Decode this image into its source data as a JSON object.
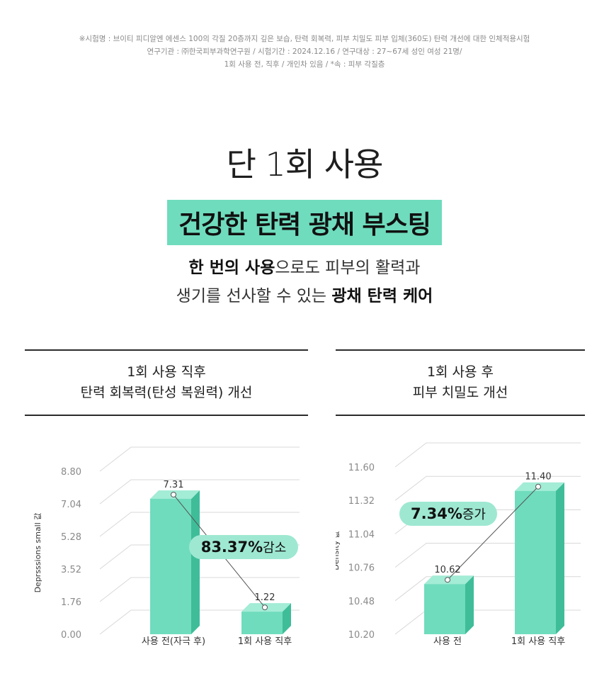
{
  "footnote": {
    "lines": [
      "※시험명 : 브이티 피디알엔 에센스 100의 각질 20층까지 깊은 보습, 탄력 회복력, 피부 치밀도 피부 입체(360도) 탄력 개선에 대한 인체적용시험",
      "연구기관 : ㈜한국피부과학연구원 / 시험기간 : 2024.12.16 / 연구대상 : 27~67세 성인 여성 21명/",
      "1회 사용 전, 직후 / 개인차 있음 / *속 : 피부 각질층"
    ]
  },
  "header": {
    "title": "단 1회 사용",
    "highlight": "건강한 탄력 광채 부스팅",
    "desc_line1_bold": "한 번의 사용",
    "desc_line1_rest": "으로도 피부의 활력과",
    "desc_line2_rest": "생기를 선사할 수 있는 ",
    "desc_line2_bold": "광채 탄력 케어"
  },
  "colors": {
    "bar_front": "#6fdcbd",
    "bar_side": "#3fbd99",
    "bar_top": "#a3ecd6",
    "badge_bg": "#9ee8d2",
    "axis_text": "#8a8a8a",
    "grid": "#d8d8d8"
  },
  "chart_data": [
    {
      "type": "bar",
      "title_lines": [
        "1회 사용 직후",
        "탄력 회복력(탄성 복원력) 개선"
      ],
      "ylabel": "Deprsssions small 값",
      "yticks": [
        0.0,
        1.76,
        3.52,
        5.28,
        7.04,
        8.8
      ],
      "ylim": [
        0,
        8.8
      ],
      "categories": [
        "사용 전(자극 후)",
        "1회 사용 직후"
      ],
      "values": [
        7.31,
        1.22
      ],
      "annotation": {
        "value": "83.37%",
        "text": "감소"
      }
    },
    {
      "type": "bar",
      "title_lines": [
        "1회 사용 후",
        "피부 치밀도 개선"
      ],
      "ylabel": "Density 값",
      "yticks": [
        10.2,
        10.48,
        10.76,
        11.04,
        11.32,
        11.6
      ],
      "ylim": [
        10.2,
        11.6
      ],
      "categories": [
        "사용 전",
        "1회 사용 직후"
      ],
      "values": [
        10.62,
        11.4
      ],
      "annotation": {
        "value": "7.34%",
        "text": "증가"
      }
    }
  ]
}
